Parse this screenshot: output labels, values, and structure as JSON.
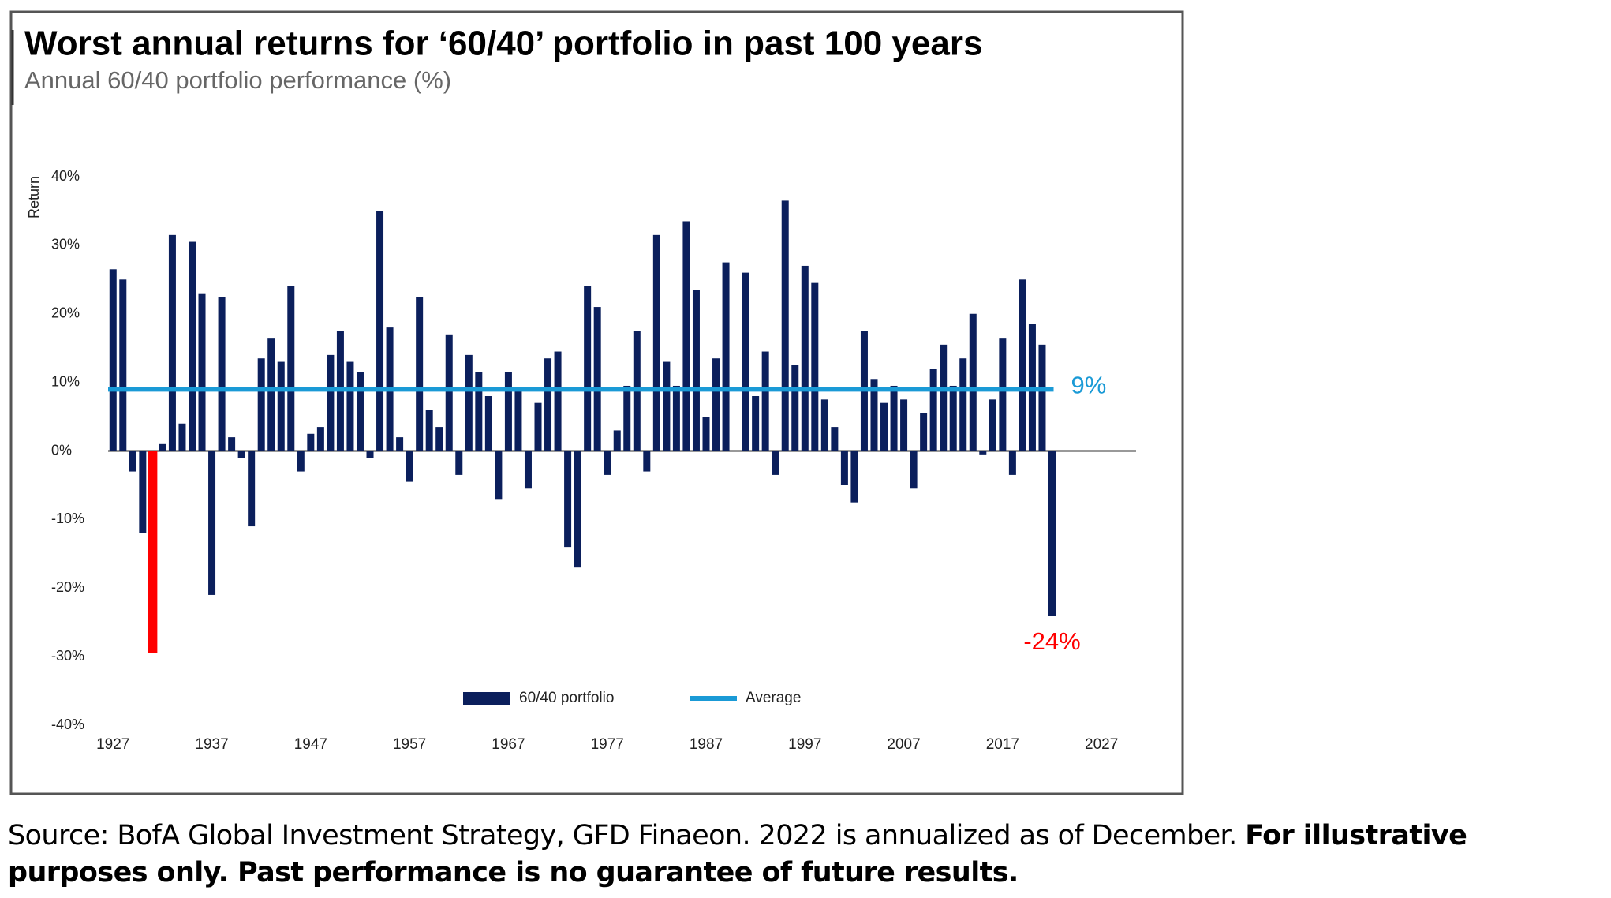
{
  "chart_data": {
    "type": "bar",
    "title": "Worst annual returns for ‘60/40’ portfolio in past 100 years",
    "subtitle": "Annual 60/40 portfolio performance (%)",
    "ylabel": "Return",
    "x": [
      1927,
      1928,
      1929,
      1930,
      1931,
      1932,
      1933,
      1934,
      1935,
      1936,
      1937,
      1938,
      1939,
      1940,
      1941,
      1942,
      1943,
      1944,
      1945,
      1946,
      1947,
      1948,
      1949,
      1950,
      1951,
      1952,
      1953,
      1954,
      1955,
      1956,
      1957,
      1958,
      1959,
      1960,
      1961,
      1962,
      1963,
      1964,
      1965,
      1966,
      1967,
      1968,
      1969,
      1970,
      1971,
      1972,
      1973,
      1974,
      1975,
      1976,
      1977,
      1978,
      1979,
      1980,
      1981,
      1982,
      1983,
      1984,
      1985,
      1986,
      1987,
      1988,
      1989,
      1990,
      1991,
      1992,
      1993,
      1994,
      1995,
      1996,
      1997,
      1998,
      1999,
      2000,
      2001,
      2002,
      2003,
      2004,
      2005,
      2006,
      2007,
      2008,
      2009,
      2010,
      2011,
      2012,
      2013,
      2014,
      2015,
      2016,
      2017,
      2018,
      2019,
      2020,
      2021,
      2022
    ],
    "series": [
      {
        "name": "60/40 portfolio",
        "color": "#0b1f5c",
        "values": [
          26.5,
          25,
          -3,
          -12,
          -29.5,
          1,
          31.5,
          4,
          30.5,
          23,
          -21,
          22.5,
          2,
          -1,
          -11,
          13.5,
          16.5,
          13,
          24,
          -3,
          2.5,
          3.5,
          14,
          17.5,
          13,
          11.5,
          -1,
          35,
          18,
          2,
          -4.5,
          22.5,
          6,
          3.5,
          17,
          -3.5,
          14,
          11.5,
          8,
          -7,
          11.5,
          9,
          -5.5,
          7,
          13.5,
          14.5,
          -14,
          -17,
          24,
          21,
          -3.5,
          3,
          9.5,
          17.5,
          -3,
          31.5,
          13,
          9.5,
          33.5,
          23.5,
          5,
          13.5,
          27.5,
          0,
          26,
          8,
          14.5,
          -3.5,
          36.5,
          12.5,
          27,
          24.5,
          7.5,
          3.5,
          -5,
          -7.5,
          17.5,
          10.5,
          7,
          9.5,
          7.5,
          -5.5,
          5.5,
          12,
          15.5,
          9.5,
          13.5,
          20,
          -0.5,
          7.5,
          16.5,
          -3.5,
          25,
          18.5,
          15.5,
          -24
        ],
        "highlight_color": "#ff0000",
        "value_labels": [
          null,
          null,
          null,
          null,
          null,
          null,
          null,
          null,
          null,
          null,
          null,
          null,
          null,
          null,
          null,
          null,
          null,
          null,
          null,
          null,
          null,
          null,
          null,
          null,
          null,
          null,
          null,
          null,
          null,
          null,
          null,
          null,
          null,
          null,
          null,
          null,
          null,
          null,
          null,
          null,
          null,
          null,
          null,
          null,
          null,
          null,
          null,
          null,
          null,
          null,
          null,
          null,
          null,
          null,
          null,
          null,
          null,
          null,
          null,
          null,
          null,
          null,
          null,
          null,
          null,
          null,
          null,
          null,
          null,
          null,
          null,
          null,
          null,
          null,
          null,
          null,
          null,
          null,
          null,
          null,
          null,
          null,
          null,
          null,
          null,
          null,
          null,
          null,
          null,
          null,
          null,
          null,
          null,
          null,
          null,
          "-24%"
        ]
      },
      {
        "name": "Average",
        "color": "#1a9ad6",
        "value": 9,
        "value_label": "9%"
      }
    ],
    "xlim": [
      1926.5,
      2030.5
    ],
    "xticks": [
      1927,
      1937,
      1947,
      1957,
      1967,
      1977,
      1987,
      1997,
      2007,
      2017,
      2027
    ],
    "ylim": [
      -40,
      40
    ],
    "yticks": [
      {
        "value": 40,
        "label": "40%"
      },
      {
        "value": 30,
        "label": "30%"
      },
      {
        "value": 20,
        "label": "20%"
      },
      {
        "value": 10,
        "label": "10%"
      },
      {
        "value": 0,
        "label": "0%"
      },
      {
        "value": -10,
        "label": "-10%"
      },
      {
        "value": -20,
        "label": "-20%"
      },
      {
        "value": -30,
        "label": "-30%"
      },
      {
        "value": -40,
        "label": "-40%"
      }
    ],
    "grid": false,
    "legend": "bottom"
  },
  "footer": {
    "source": "Source: BofA Global Investment Strategy, GFD Finaeon. 2022 is annualized as of December.",
    "disclaimer": "For illustrative purposes only. Past performance is no guarantee of future results."
  }
}
